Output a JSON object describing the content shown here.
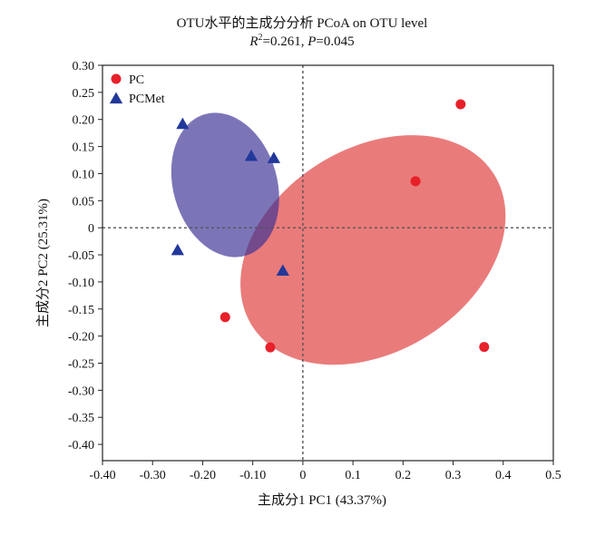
{
  "chart_data": {
    "type": "scatter",
    "title": "OTU水平的主成分分析 PCoA on OTU level",
    "subtitle": {
      "r_label": "R",
      "r_sup": "2",
      "r_value": "=0.261, ",
      "p_label": "P",
      "p_value": "=0.045"
    },
    "xlabel": "主成分1  PC1 (43.37%)",
    "ylabel": "主成分2  PC2 (25.31%)",
    "xlim": [
      -0.4,
      0.5
    ],
    "ylim": [
      -0.43,
      0.3
    ],
    "x_ticks": [
      {
        "value": -0.4,
        "label": "-0.40"
      },
      {
        "value": -0.3,
        "label": "-0.30"
      },
      {
        "value": -0.2,
        "label": "-0.20"
      },
      {
        "value": -0.1,
        "label": "-0.10"
      },
      {
        "value": 0.0,
        "label": "0"
      },
      {
        "value": 0.1,
        "label": "0.1"
      },
      {
        "value": 0.2,
        "label": "0.2"
      },
      {
        "value": 0.3,
        "label": "0.3"
      },
      {
        "value": 0.4,
        "label": "0.4"
      },
      {
        "value": 0.5,
        "label": "0.5"
      }
    ],
    "y_ticks": [
      {
        "value": 0.3,
        "label": "0.30"
      },
      {
        "value": 0.25,
        "label": "0.25"
      },
      {
        "value": 0.2,
        "label": "0.20"
      },
      {
        "value": 0.15,
        "label": "0.15"
      },
      {
        "value": 0.1,
        "label": "0.10"
      },
      {
        "value": 0.05,
        "label": "0.05"
      },
      {
        "value": 0.0,
        "label": "0"
      },
      {
        "value": -0.05,
        "label": "-0.05"
      },
      {
        "value": -0.1,
        "label": "-0.10"
      },
      {
        "value": -0.15,
        "label": "-0.15"
      },
      {
        "value": -0.2,
        "label": "-0.20"
      },
      {
        "value": -0.25,
        "label": "-0.25"
      },
      {
        "value": -0.3,
        "label": "-0.30"
      },
      {
        "value": -0.35,
        "label": "-0.35"
      },
      {
        "value": -0.4,
        "label": "-0.40"
      }
    ],
    "reference_lines": {
      "x": 0,
      "y": 0,
      "style": "dotted"
    },
    "legend_position": "top-left",
    "series": [
      {
        "name": "PC",
        "marker": "circle",
        "color": "#e8202a",
        "points": [
          {
            "x": 0.315,
            "y": 0.228
          },
          {
            "x": 0.225,
            "y": 0.086
          },
          {
            "x": 0.362,
            "y": -0.22
          },
          {
            "x": -0.155,
            "y": -0.165
          },
          {
            "x": -0.065,
            "y": -0.221
          }
        ],
        "ellipse": {
          "cx": 0.14,
          "cy": -0.041,
          "rx": 0.285,
          "ry": 0.188,
          "rotation_deg": -32,
          "fill": "#e34f4f",
          "opacity": 0.75
        }
      },
      {
        "name": "PCMet",
        "marker": "triangle",
        "color": "#22389a",
        "points": [
          {
            "x": -0.24,
            "y": 0.191
          },
          {
            "x": -0.103,
            "y": 0.132
          },
          {
            "x": -0.058,
            "y": 0.128
          },
          {
            "x": -0.25,
            "y": -0.042
          },
          {
            "x": -0.04,
            "y": -0.08
          }
        ],
        "ellipse": {
          "cx": -0.155,
          "cy": 0.079,
          "rx": 0.147,
          "ry": 0.096,
          "rotation_deg": 74,
          "fill": "#3c3496",
          "opacity": 0.68
        }
      }
    ]
  }
}
